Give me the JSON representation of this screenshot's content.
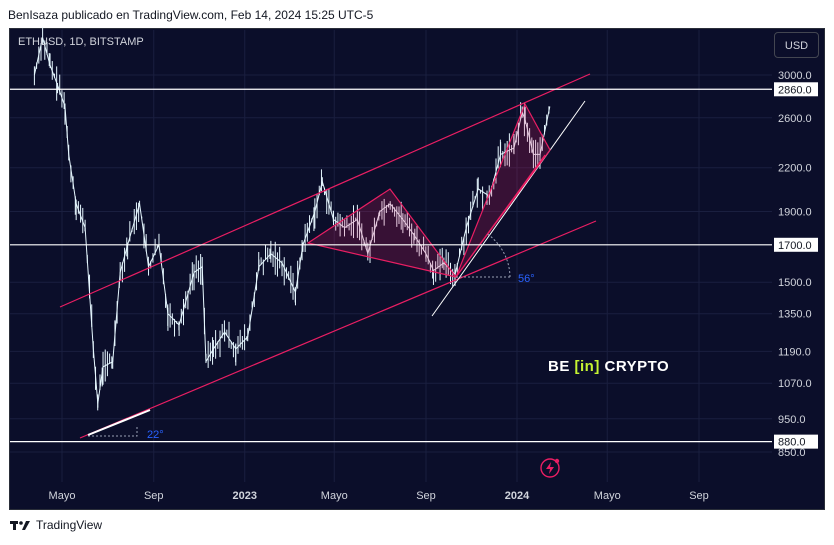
{
  "header": {
    "publisher_line": "BenIsaza publicado en TradingView.com, Feb 14, 2024 15:25 UTC-5"
  },
  "legend": {
    "symbol_text": "ETHUSD, 1D, BITSTAMP"
  },
  "currency_button": {
    "label": "USD"
  },
  "watermark": {
    "left": "BE",
    "middle": "[in]",
    "right": "CRYPTO"
  },
  "footer": {
    "logo_text": "TradingView"
  },
  "colors": {
    "background": "#0b0e2a",
    "candles": "#e6f7ff",
    "channel": "#e91e63",
    "horizontal": "#ffffff",
    "angle_label": "#2962ff"
  },
  "chart_data": {
    "type": "line",
    "symbol": "ETHUSD",
    "interval": "1D",
    "exchange": "BITSTAMP",
    "x_tick_labels": [
      "Mayo",
      "Sep",
      "2023",
      "Mayo",
      "Sep",
      "2024",
      "Mayo",
      "Sep"
    ],
    "y_tick_labels": [
      "3000.0",
      "2600.0",
      "2200.0",
      "1900.0",
      "1500.0",
      "1350.0",
      "1190.0",
      "1070.0",
      "950.0",
      "850.0"
    ],
    "price_labels": [
      "2860.0",
      "1700.0",
      "880.0"
    ],
    "horizontal_levels": [
      2860,
      1700,
      880
    ],
    "angle_annotations": [
      "22°",
      "56°"
    ],
    "series": [
      {
        "x": [
          "2022-03-25",
          "2022-04-05",
          "2022-04-15",
          "2022-04-25",
          "2022-05-05",
          "2022-05-10",
          "2022-05-20",
          "2022-06-01",
          "2022-06-12",
          "2022-06-18",
          "2022-06-25",
          "2022-07-08",
          "2022-07-18",
          "2022-07-28",
          "2022-08-13",
          "2022-08-25",
          "2022-09-08",
          "2022-09-20",
          "2022-10-05",
          "2022-10-25",
          "2022-11-05",
          "2022-11-10",
          "2022-11-20",
          "2022-12-05",
          "2022-12-20",
          "2023-01-05",
          "2023-01-20",
          "2023-02-05",
          "2023-02-20",
          "2023-03-10",
          "2023-03-20",
          "2023-04-05",
          "2023-04-15",
          "2023-04-30",
          "2023-05-15",
          "2023-06-01",
          "2023-06-15",
          "2023-07-01",
          "2023-07-15",
          "2023-08-01",
          "2023-08-17",
          "2023-09-01",
          "2023-09-11",
          "2023-09-25",
          "2023-10-10",
          "2023-10-25",
          "2023-11-10",
          "2023-11-25",
          "2023-12-10",
          "2023-12-28",
          "2024-01-08",
          "2024-01-12",
          "2024-01-23",
          "2024-02-01",
          "2024-02-14"
        ],
        "y": [
          3000,
          3400,
          3100,
          2900,
          2700,
          2300,
          1950,
          1800,
          1200,
          1000,
          1130,
          1150,
          1550,
          1700,
          1950,
          1580,
          1700,
          1350,
          1300,
          1550,
          1580,
          1150,
          1200,
          1270,
          1200,
          1250,
          1580,
          1650,
          1600,
          1450,
          1700,
          1900,
          2100,
          1850,
          1800,
          1850,
          1650,
          1900,
          1950,
          1850,
          1750,
          1650,
          1560,
          1600,
          1540,
          1800,
          2050,
          2000,
          2300,
          2350,
          2650,
          2580,
          2300,
          2300,
          2700
        ]
      }
    ]
  }
}
